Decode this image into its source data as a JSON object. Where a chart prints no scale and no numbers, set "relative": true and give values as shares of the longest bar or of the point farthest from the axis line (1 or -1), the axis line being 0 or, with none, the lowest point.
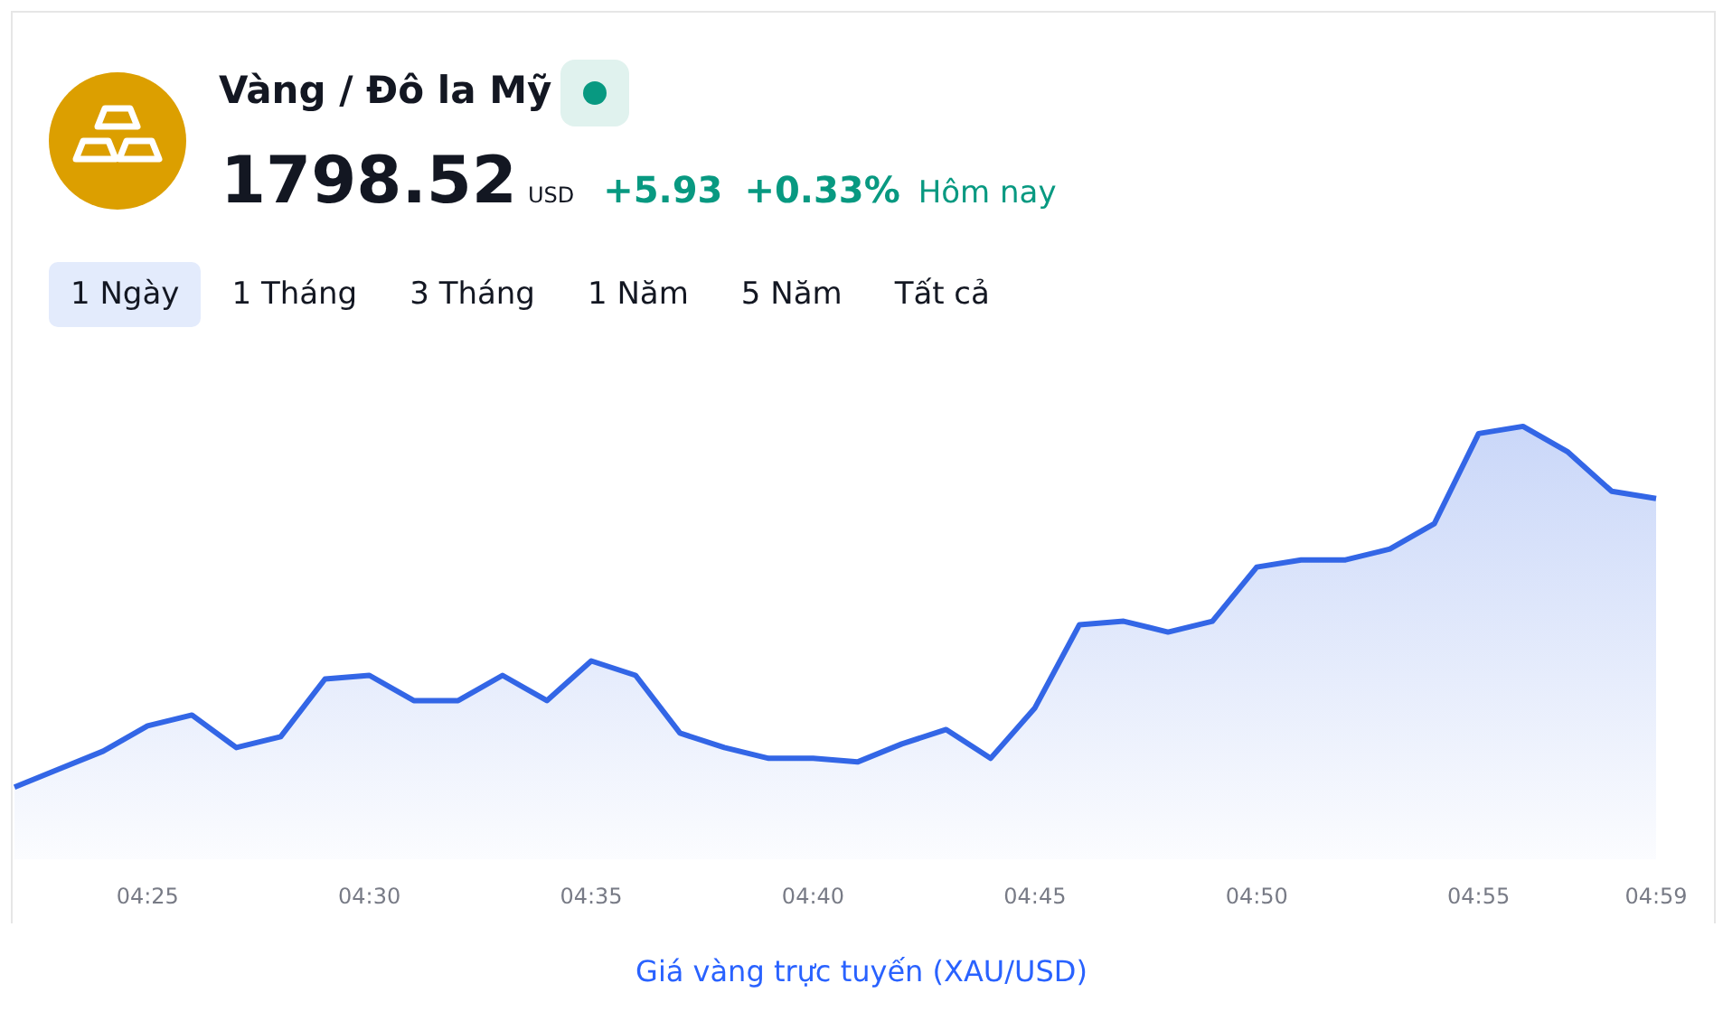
{
  "chart_data": {
    "type": "area",
    "title": "Vàng / Đô la Mỹ",
    "relative": true,
    "color": "#3366e6",
    "categories": [
      null,
      null,
      null,
      "04:25",
      null,
      null,
      null,
      null,
      "04:30",
      null,
      null,
      null,
      null,
      "04:35",
      null,
      null,
      null,
      null,
      "04:40",
      null,
      null,
      null,
      null,
      "04:45",
      null,
      null,
      null,
      null,
      "04:50",
      null,
      null,
      null,
      null,
      "04:55",
      null,
      null,
      null,
      "04:59"
    ],
    "values": [
      0,
      0.05,
      0.1,
      0.17,
      0.2,
      0.11,
      0.14,
      0.3,
      0.31,
      0.24,
      0.24,
      0.31,
      0.24,
      0.35,
      0.31,
      0.15,
      0.11,
      0.08,
      0.08,
      0.07,
      0.12,
      0.16,
      0.08,
      0.22,
      0.45,
      0.46,
      0.43,
      0.46,
      0.61,
      0.63,
      0.63,
      0.66,
      0.73,
      0.98,
      1,
      0.93,
      0.82,
      0.8
    ],
    "annotations": [
      "1798.52",
      "USD",
      "+5.93",
      "+0.33%",
      "Hôm nay",
      "1 Ngày",
      "1 Tháng",
      "3 Tháng",
      "1 Năm",
      "5 Năm",
      "Tất cả",
      "Giá vàng trực tuyến (XAU/USD)"
    ]
  }
}
